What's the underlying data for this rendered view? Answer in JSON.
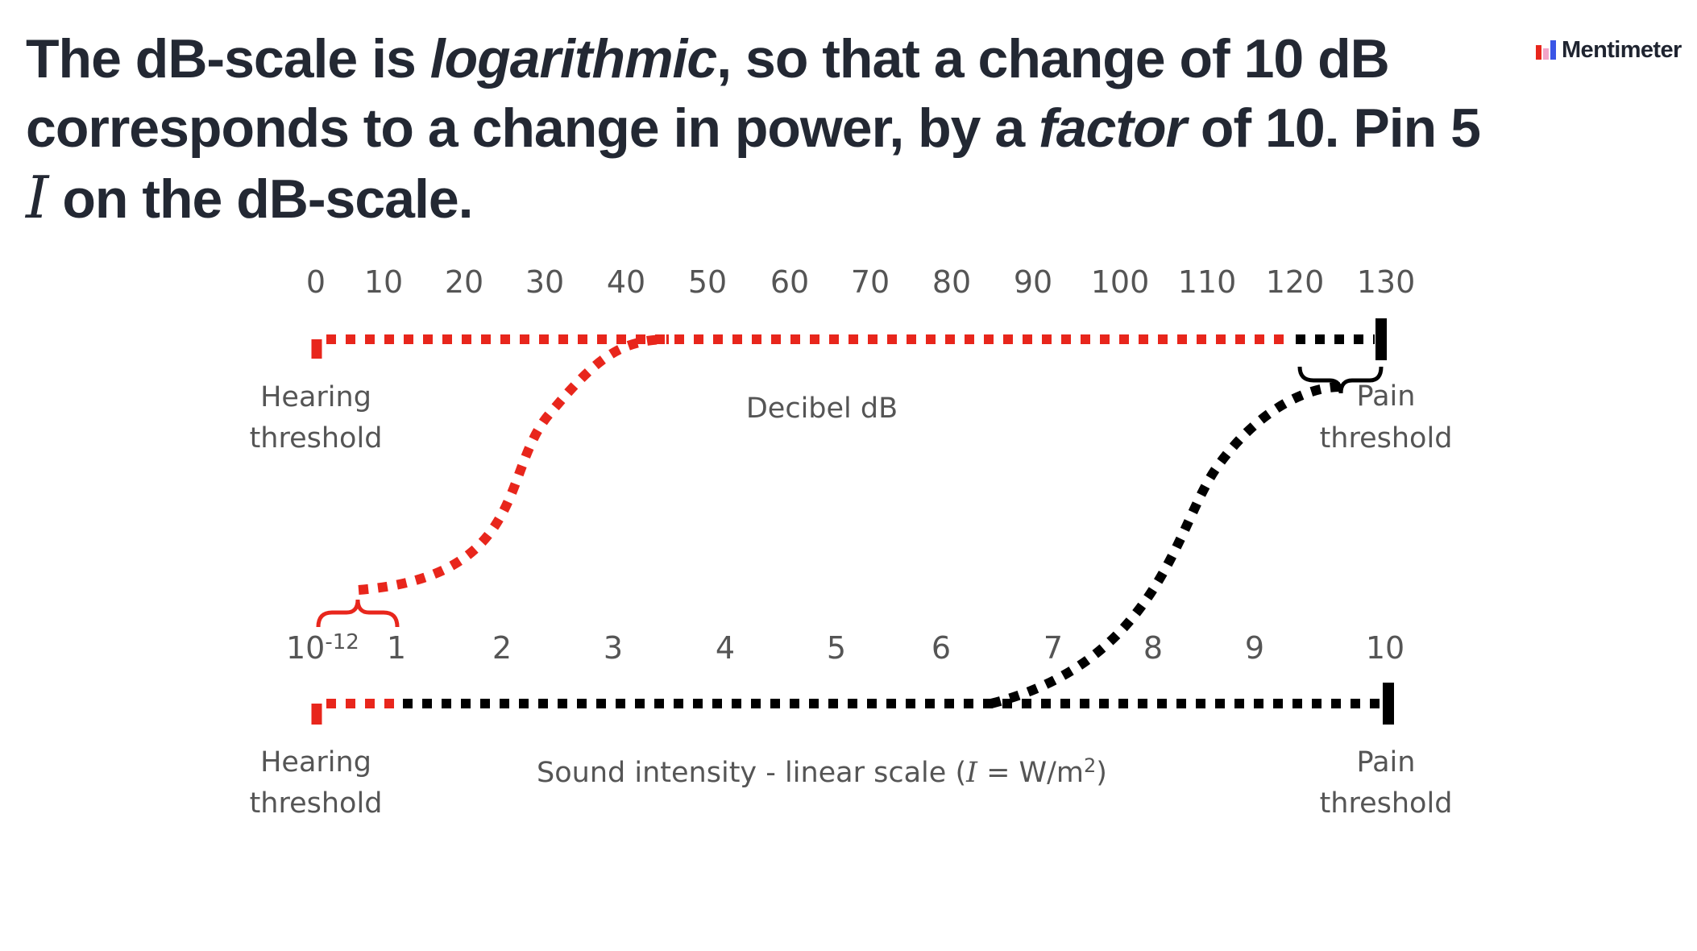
{
  "question": {
    "p1": "The dB-scale is ",
    "em1": "logarithmic",
    "p2": ", so that a change of 10 dB corresponds to a change in power, by a ",
    "em2": "factor",
    "p3": " of 10. Pin 5 ",
    "var": "I",
    "p4": " on the dB-scale."
  },
  "brand": {
    "name": "Mentimeter"
  },
  "colors": {
    "red": "#e8261c",
    "black": "#000000",
    "label": "#555555",
    "text": "#232833"
  },
  "db_scale": {
    "ticks": [
      "0",
      "10",
      "20",
      "30",
      "40",
      "50",
      "60",
      "70",
      "80",
      "90",
      "100",
      "110",
      "120",
      "130"
    ],
    "axis_label": "Decibel dB",
    "left_label": [
      "Hearing",
      "threshold"
    ],
    "right_label": [
      "Pain",
      "threshold"
    ]
  },
  "intensity_scale": {
    "ticks": [
      "1",
      "2",
      "3",
      "4",
      "5",
      "6",
      "7",
      "8",
      "9",
      "10"
    ],
    "start_base": "10",
    "start_exp": "-12",
    "axis_label_a": "Sound intensity - linear scale (",
    "axis_label_var": "I",
    "axis_label_b": " = W/m",
    "axis_label_sup": "2",
    "axis_label_c": ")",
    "left_label": [
      "Hearing",
      "threshold"
    ],
    "right_label": [
      "Pain",
      "threshold"
    ]
  }
}
